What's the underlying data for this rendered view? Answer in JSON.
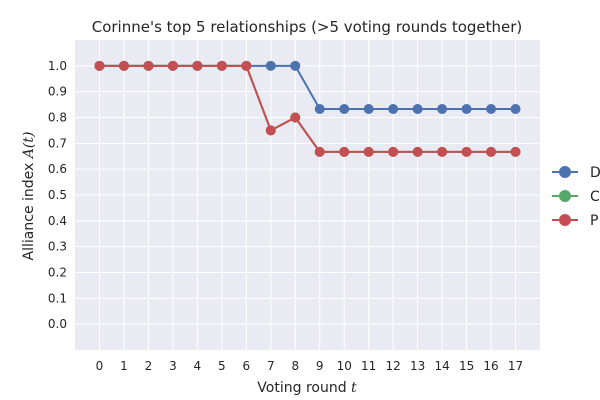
{
  "chart_data": {
    "type": "line",
    "title": "Corinne's top 5 relationships (>5 voting rounds together)",
    "xlabel_prefix": "Voting round ",
    "xlabel_var": "t",
    "ylabel_prefix": "Alliance index ",
    "ylabel_var": "A(t)",
    "x": [
      0,
      1,
      2,
      3,
      4,
      5,
      6,
      7,
      8,
      9,
      10,
      11,
      12,
      13,
      14,
      15,
      16,
      17
    ],
    "xlim": [
      -1,
      18
    ],
    "ylim": [
      -0.1,
      1.1
    ],
    "yticks": [
      0.0,
      0.1,
      0.2,
      0.3,
      0.4,
      0.5,
      0.6,
      0.7,
      0.8,
      0.9,
      1.0
    ],
    "ytick_labels": [
      "0.0",
      "0.1",
      "0.2",
      "0.3",
      "0.4",
      "0.5",
      "0.6",
      "0.7",
      "0.8",
      "0.9",
      "1.0"
    ],
    "grid": true,
    "legend_placement": "right",
    "series": [
      {
        "legend_text": "D",
        "color": "#4C72B0",
        "values": [
          1,
          1,
          1,
          1,
          1,
          1,
          1,
          1,
          1,
          0.833,
          0.833,
          0.833,
          0.833,
          0.833,
          0.833,
          0.833,
          0.833,
          0.833
        ]
      },
      {
        "legend_text": "C",
        "color": "#55A868",
        "values": [
          1,
          1,
          1,
          1,
          1,
          1,
          1,
          0.75,
          0.8,
          0.667,
          0.667,
          0.667,
          0.667,
          0.667,
          0.667,
          0.667,
          0.667,
          0.667
        ]
      },
      {
        "legend_text": "P",
        "color": "#C44E52",
        "values": [
          1,
          1,
          1,
          1,
          1,
          1,
          1,
          0.75,
          0.8,
          0.667,
          0.667,
          0.667,
          0.667,
          0.667,
          0.667,
          0.667,
          0.667,
          0.667
        ]
      }
    ]
  }
}
